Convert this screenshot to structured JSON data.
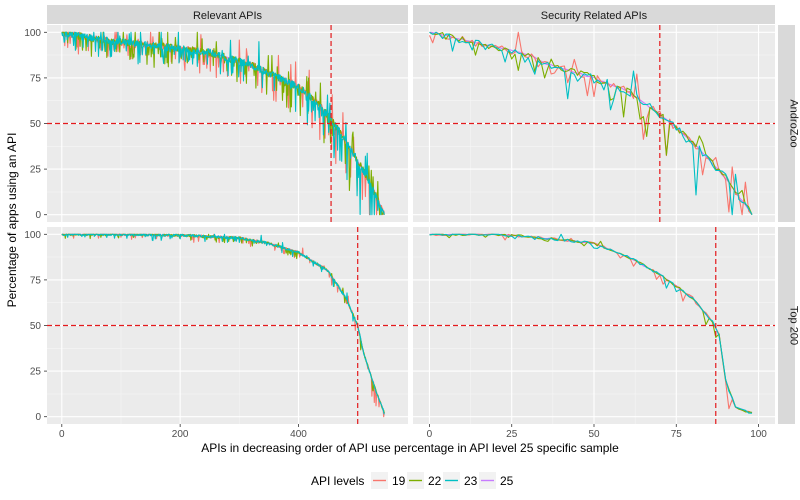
{
  "chart_data": {
    "type": "line",
    "xlabel": "APIs in decreasing order of API use percentage in API level 25 specific sample",
    "ylabel": "Percentage of apps using an API",
    "columns": [
      "Relevant APIs",
      "Security Related APIs"
    ],
    "rows": [
      "AndroZoo",
      "Top 200"
    ],
    "y_ticks": [
      0,
      25,
      50,
      75,
      100
    ],
    "ylim": [
      -4,
      104
    ],
    "x_ticks_left": [
      0,
      200,
      400
    ],
    "xlim_left": [
      -25,
      585
    ],
    "x_ticks_right": [
      0,
      25,
      50,
      75,
      100
    ],
    "xlim_right": [
      -5,
      105
    ],
    "hline": 50,
    "legend": {
      "title": "API levels",
      "position": "bottom",
      "items": [
        {
          "label": "19",
          "color": "#F8766D"
        },
        {
          "label": "22",
          "color": "#7CAE00"
        },
        {
          "label": "23",
          "color": "#00BFC4"
        },
        {
          "label": "25",
          "color": "#C77CFF"
        }
      ]
    },
    "panels": [
      {
        "row": "AndroZoo",
        "col": "Relevant APIs",
        "vline": 455,
        "n": 545,
        "profile": [
          [
            0,
            100
          ],
          [
            60,
            96
          ],
          [
            150,
            93
          ],
          [
            250,
            89
          ],
          [
            320,
            82
          ],
          [
            360,
            76
          ],
          [
            400,
            70
          ],
          [
            430,
            62
          ],
          [
            460,
            50
          ],
          [
            490,
            35
          ],
          [
            520,
            18
          ],
          [
            545,
            0
          ]
        ]
      },
      {
        "row": "AndroZoo",
        "col": "Security Related APIs",
        "vline": 70,
        "n": 98,
        "profile": [
          [
            0,
            100
          ],
          [
            10,
            96
          ],
          [
            20,
            92
          ],
          [
            30,
            88
          ],
          [
            35,
            83
          ],
          [
            50,
            75
          ],
          [
            60,
            68
          ],
          [
            70,
            55
          ],
          [
            80,
            40
          ],
          [
            90,
            20
          ],
          [
            98,
            0
          ]
        ]
      },
      {
        "row": "Top 200",
        "col": "Relevant APIs",
        "vline": 500,
        "n": 545,
        "profile": [
          [
            0,
            100
          ],
          [
            100,
            100
          ],
          [
            200,
            99.5
          ],
          [
            300,
            98
          ],
          [
            350,
            95
          ],
          [
            400,
            90
          ],
          [
            450,
            80
          ],
          [
            480,
            65
          ],
          [
            500,
            50
          ],
          [
            510,
            35
          ],
          [
            530,
            15
          ],
          [
            545,
            2
          ]
        ]
      },
      {
        "row": "Top 200",
        "col": "Security Related APIs",
        "vline": 87,
        "n": 98,
        "profile": [
          [
            0,
            100
          ],
          [
            20,
            100
          ],
          [
            35,
            98
          ],
          [
            50,
            95
          ],
          [
            60,
            88
          ],
          [
            70,
            78
          ],
          [
            80,
            65
          ],
          [
            86,
            52
          ],
          [
            88,
            45
          ],
          [
            90,
            20
          ],
          [
            93,
            5
          ],
          [
            98,
            2
          ]
        ]
      }
    ]
  }
}
